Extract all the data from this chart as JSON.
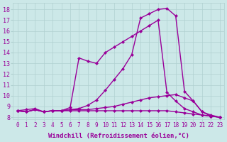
{
  "background_color": "#cce8e8",
  "grid_color": "#b0d0d0",
  "line_color": "#990099",
  "marker": "D",
  "marker_size": 2.5,
  "line_width": 1.0,
  "xlabel": "Windchill (Refroidissement éolien,°C)",
  "xlabel_fontsize": 6.5,
  "xtick_fontsize": 5.5,
  "ytick_fontsize": 6.0,
  "xlim": [
    -0.5,
    23.5
  ],
  "ylim": [
    7.8,
    18.6
  ],
  "yticks": [
    8,
    9,
    10,
    11,
    12,
    13,
    14,
    15,
    16,
    17,
    18
  ],
  "xticks": [
    0,
    1,
    2,
    3,
    4,
    5,
    6,
    7,
    8,
    9,
    10,
    11,
    12,
    13,
    14,
    15,
    16,
    17,
    18,
    19,
    20,
    21,
    22,
    23
  ],
  "curve1_x": [
    0,
    1,
    2,
    3,
    4,
    5,
    6,
    7,
    8,
    9,
    10,
    11,
    12,
    13,
    14,
    15,
    16,
    17,
    18,
    19,
    20,
    21,
    22,
    23
  ],
  "curve1_y": [
    8.6,
    8.7,
    8.8,
    8.5,
    8.6,
    8.6,
    8.7,
    8.8,
    9.1,
    9.6,
    10.5,
    11.5,
    12.5,
    13.8,
    17.2,
    17.6,
    18.0,
    18.1,
    17.4,
    10.4,
    9.5,
    8.5,
    8.1,
    8.0
  ],
  "curve2_x": [
    0,
    1,
    2,
    3,
    4,
    5,
    6,
    7,
    8,
    9,
    10,
    11,
    12,
    13,
    14,
    15,
    16,
    17,
    18,
    19,
    20,
    21,
    22,
    23
  ],
  "curve2_y": [
    8.6,
    8.5,
    8.7,
    8.5,
    8.6,
    8.6,
    8.9,
    13.5,
    13.2,
    13.0,
    14.0,
    14.5,
    15.0,
    15.5,
    16.0,
    16.5,
    17.0,
    10.3,
    9.5,
    8.8,
    8.5,
    8.2,
    8.1,
    8.0
  ],
  "curve3_x": [
    0,
    1,
    2,
    3,
    4,
    5,
    6,
    7,
    8,
    9,
    10,
    11,
    12,
    13,
    14,
    15,
    16,
    17,
    18,
    19,
    20,
    21,
    22,
    23
  ],
  "curve3_y": [
    8.6,
    8.5,
    8.7,
    8.5,
    8.6,
    8.6,
    8.7,
    8.7,
    8.7,
    8.8,
    8.9,
    9.0,
    9.2,
    9.4,
    9.6,
    9.8,
    9.9,
    10.0,
    10.1,
    9.8,
    9.5,
    8.5,
    8.2,
    8.0
  ],
  "curve4_x": [
    0,
    1,
    2,
    3,
    4,
    5,
    6,
    7,
    8,
    9,
    10,
    11,
    12,
    13,
    14,
    15,
    16,
    17,
    18,
    19,
    20,
    21,
    22,
    23
  ],
  "curve4_y": [
    8.6,
    8.5,
    8.7,
    8.5,
    8.6,
    8.6,
    8.6,
    8.6,
    8.6,
    8.6,
    8.6,
    8.6,
    8.6,
    8.6,
    8.6,
    8.6,
    8.6,
    8.6,
    8.5,
    8.4,
    8.3,
    8.2,
    8.1,
    8.0
  ]
}
